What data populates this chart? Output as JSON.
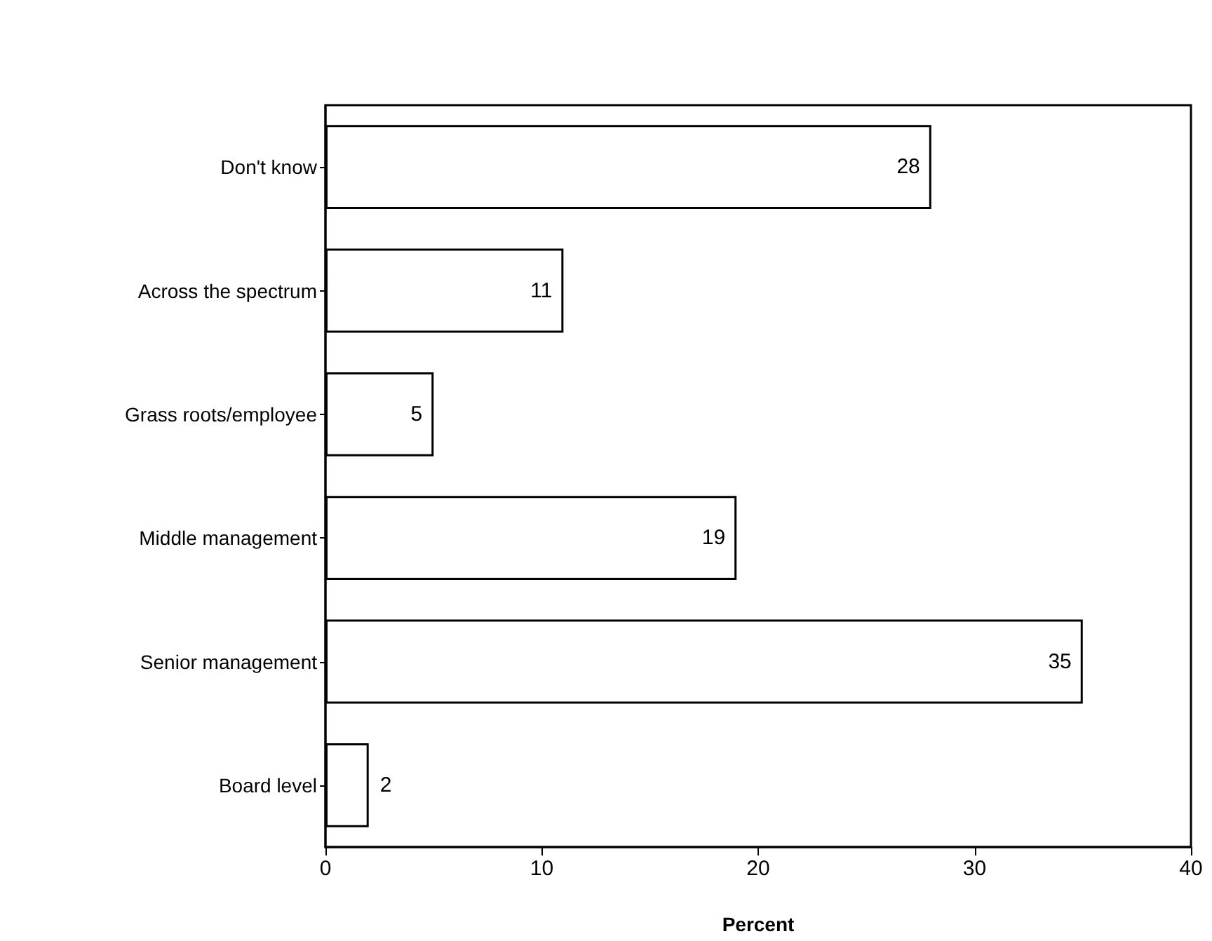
{
  "chart_data": {
    "type": "bar",
    "orientation": "horizontal",
    "categories": [
      "Don't know",
      "Across the spectrum",
      "Grass roots/employee",
      "Middle management",
      "Senior management",
      "Board level"
    ],
    "values": [
      28,
      11,
      5,
      19,
      35,
      2
    ],
    "color": "#ffffff",
    "data_labels": true,
    "xlim": [
      0,
      40
    ],
    "xticks": [
      0,
      10,
      20,
      30,
      40
    ],
    "xlabel": "Percent",
    "grid": false
  }
}
